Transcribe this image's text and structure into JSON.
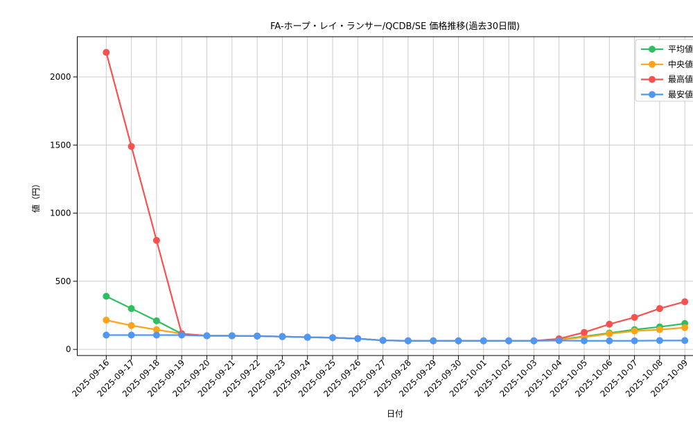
{
  "chart_data": {
    "type": "line",
    "title": "FA-ホープ・レイ・ランサー/QCDB/SE 価格推移(過去30日間)",
    "xlabel": "日付",
    "ylabel": "値（円）",
    "categories": [
      "2025-09-16",
      "2025-09-17",
      "2025-09-18",
      "2025-09-19",
      "2025-09-20",
      "2025-09-21",
      "2025-09-22",
      "2025-09-23",
      "2025-09-24",
      "2025-09-25",
      "2025-09-26",
      "2025-09-27",
      "2025-09-28",
      "2025-09-29",
      "2025-09-30",
      "2025-10-01",
      "2025-10-02",
      "2025-10-03",
      "2025-10-04",
      "2025-10-05",
      "2025-10-06",
      "2025-10-07",
      "2025-10-08",
      "2025-10-09"
    ],
    "series": [
      {
        "name": "平均値",
        "color": "#2dbe60",
        "values": [
          390,
          300,
          210,
          115,
          100,
          100,
          98,
          94,
          89,
          86,
          79,
          66,
          63,
          63,
          63,
          63,
          63,
          63,
          72,
          95,
          120,
          145,
          165,
          190
        ]
      },
      {
        "name": "中央値",
        "color": "#ffa319",
        "values": [
          215,
          175,
          145,
          115,
          100,
          100,
          98,
          94,
          89,
          86,
          79,
          66,
          63,
          63,
          63,
          63,
          63,
          63,
          70,
          90,
          115,
          135,
          145,
          160
        ]
      },
      {
        "name": "最高値",
        "color": "#f8514e",
        "values": [
          2180,
          1490,
          800,
          115,
          100,
          100,
          98,
          94,
          89,
          86,
          79,
          66,
          63,
          63,
          63,
          63,
          63,
          63,
          78,
          125,
          185,
          235,
          300,
          350
        ]
      },
      {
        "name": "最安値",
        "color": "#4f97f4",
        "values": [
          105,
          105,
          105,
          105,
          100,
          100,
          98,
          94,
          89,
          86,
          79,
          66,
          63,
          63,
          63,
          63,
          63,
          63,
          65,
          63,
          63,
          63,
          65,
          65
        ]
      }
    ],
    "yticks": [
      0,
      500,
      1000,
      1500,
      2000
    ],
    "ylim": [
      -45,
      2295
    ],
    "grid": true,
    "grid_color": "#cccccc",
    "axis_color": "#000000",
    "background_color": "#ffffff",
    "legend_position": "top-right"
  }
}
